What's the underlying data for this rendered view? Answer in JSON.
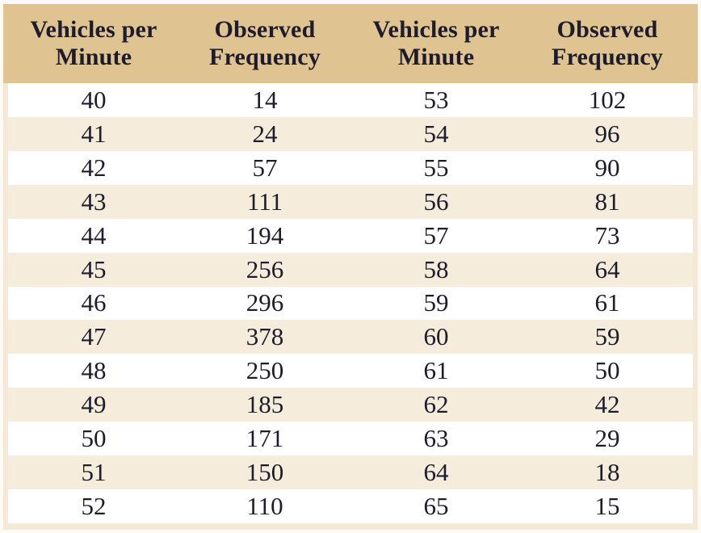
{
  "header": {
    "columns": [
      "Vehicles per Minute",
      "Observed Frequency",
      "Vehicles per Minute",
      "Observed Frequency"
    ]
  },
  "colors": {
    "header_bg": "#dfc492",
    "stripe_bg": "#f5ecdb",
    "frame_bg": "#f3e9d6",
    "row_bg": "#ffffff",
    "text": "#1d1c2c"
  },
  "chart_data": {
    "type": "table",
    "title": "",
    "columns": [
      "Vehicles per Minute",
      "Observed Frequency",
      "Vehicles per Minute",
      "Observed Frequency"
    ],
    "rows": [
      [
        40,
        14,
        53,
        102
      ],
      [
        41,
        24,
        54,
        96
      ],
      [
        42,
        57,
        55,
        90
      ],
      [
        43,
        111,
        56,
        81
      ],
      [
        44,
        194,
        57,
        73
      ],
      [
        45,
        256,
        58,
        64
      ],
      [
        46,
        296,
        59,
        61
      ],
      [
        47,
        378,
        60,
        59
      ],
      [
        48,
        250,
        61,
        50
      ],
      [
        49,
        185,
        62,
        42
      ],
      [
        50,
        171,
        63,
        29
      ],
      [
        51,
        150,
        64,
        18
      ],
      [
        52,
        110,
        65,
        15
      ]
    ],
    "layout": {
      "striped": true,
      "first_row_background": "white",
      "alternate_row_background": "cream"
    }
  }
}
